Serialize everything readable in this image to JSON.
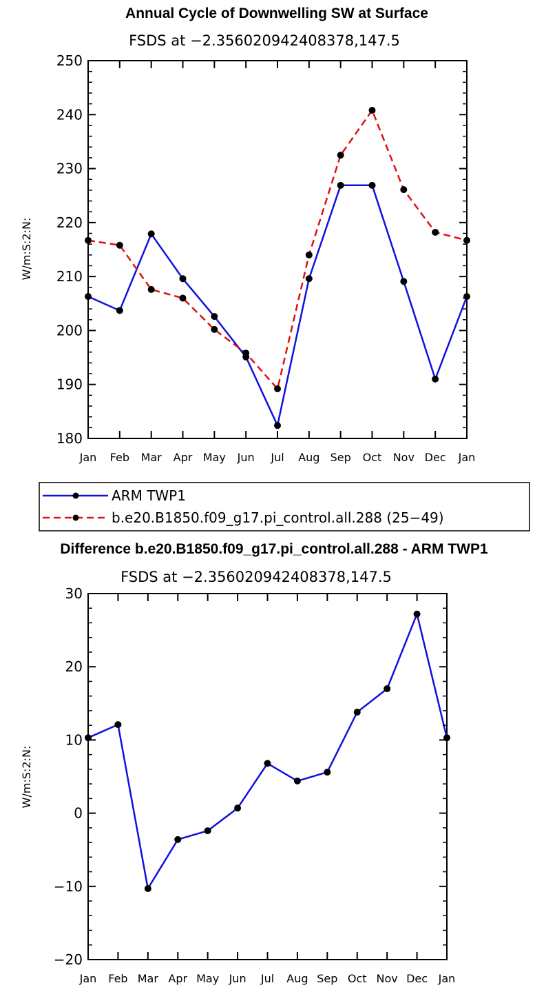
{
  "chart_data": [
    {
      "type": "line",
      "title": "Annual Cycle of Downwelling SW at Surface",
      "subtitle": "FSDS at −2.356020942408378,147.5",
      "ylabel": "W/m:S:2:N:",
      "ylim": [
        180,
        250
      ],
      "yticks": [
        "180",
        "190",
        "200",
        "210",
        "220",
        "230",
        "240",
        "250"
      ],
      "categories": [
        "Jan",
        "Feb",
        "Mar",
        "Apr",
        "May",
        "Jun",
        "Jul",
        "Aug",
        "Sep",
        "Oct",
        "Nov",
        "Dec",
        "Jan"
      ],
      "series": [
        {
          "name": "ARM TWP1",
          "color": "#1010e0",
          "dash": "solid",
          "values": [
            206.3,
            203.7,
            217.9,
            209.6,
            202.6,
            195.1,
            182.4,
            209.6,
            226.9,
            226.9,
            209.1,
            191.0,
            206.3
          ]
        },
        {
          "name": "b.e20.B1850.f09_g17.pi_control.all.288 (25−49)",
          "color": "#e01010",
          "dash": "dashed",
          "values": [
            216.7,
            215.8,
            207.6,
            206.0,
            200.2,
            195.8,
            189.2,
            214.0,
            232.5,
            240.8,
            226.1,
            218.2,
            216.7
          ]
        }
      ],
      "legend": "below"
    },
    {
      "type": "line",
      "title": "Difference b.e20.B1850.f09_g17.pi_control.all.288 - ARM TWP1",
      "subtitle": "FSDS at −2.356020942408378,147.5",
      "ylabel": "W/m:S:2:N:",
      "ylim": [
        -20,
        30
      ],
      "yticks": [
        "−20",
        "−10",
        "0",
        "10",
        "20",
        "30"
      ],
      "categories": [
        "Jan",
        "Feb",
        "Mar",
        "Apr",
        "May",
        "Jun",
        "Jul",
        "Aug",
        "Sep",
        "Oct",
        "Nov",
        "Dec",
        "Jan"
      ],
      "series": [
        {
          "color": "#1010e0",
          "dash": "solid",
          "values": [
            10.3,
            12.1,
            -10.3,
            -3.6,
            -2.4,
            0.7,
            6.8,
            4.4,
            5.6,
            13.8,
            17.0,
            27.2,
            10.3
          ]
        }
      ]
    }
  ]
}
